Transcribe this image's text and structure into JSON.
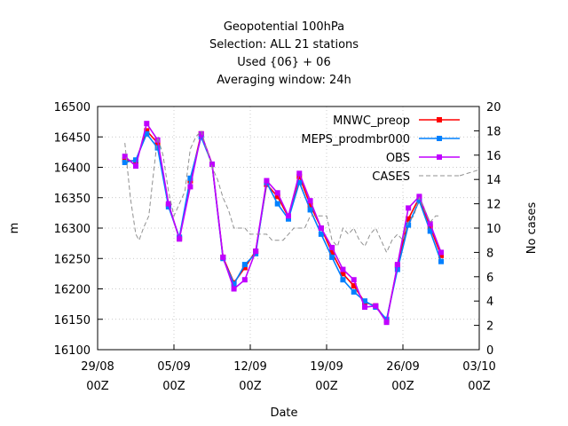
{
  "chart_data": {
    "type": "line",
    "title_lines": [
      "Geopotential 100hPa",
      "Selection: ALL     21 stations",
      "Used {06} + 06",
      "Averaging window: 24h"
    ],
    "xlabel": "Date",
    "ylabel": "m",
    "y2label": "No cases",
    "ylim": [
      16100,
      16500
    ],
    "y2lim": [
      0,
      20
    ],
    "y_ticks": [
      16100,
      16150,
      16200,
      16250,
      16300,
      16350,
      16400,
      16450,
      16500
    ],
    "y2_ticks": [
      0,
      2,
      4,
      6,
      8,
      10,
      12,
      14,
      16,
      18,
      20
    ],
    "x_ticks": [
      {
        "day": 0,
        "line1": "29/08",
        "line2": "00Z"
      },
      {
        "day": 7,
        "line1": "05/09",
        "line2": "00Z"
      },
      {
        "day": 14,
        "line1": "12/09",
        "line2": "00Z"
      },
      {
        "day": 21,
        "line1": "19/09",
        "line2": "00Z"
      },
      {
        "day": 28,
        "line1": "26/09",
        "line2": "00Z"
      },
      {
        "day": 35,
        "line1": "03/10",
        "line2": "00Z"
      }
    ],
    "xlim_days": [
      0,
      35
    ],
    "series": [
      {
        "name": "MNWC_preop",
        "color": "#ff0000",
        "marker": "square",
        "points": [
          [
            2.5,
            16412
          ],
          [
            3.5,
            16410
          ],
          [
            4.5,
            16460
          ],
          [
            5.5,
            16440
          ],
          [
            6.5,
            16338
          ],
          [
            7.5,
            16283
          ],
          [
            8.5,
            16378
          ],
          [
            9.5,
            16455
          ],
          [
            10.5,
            16405
          ],
          [
            11.5,
            16252
          ],
          [
            12.5,
            16210
          ],
          [
            13.5,
            16235
          ],
          [
            14.5,
            16262
          ],
          [
            15.5,
            16372
          ],
          [
            16.5,
            16352
          ],
          [
            17.5,
            16318
          ],
          [
            18.5,
            16385
          ],
          [
            19.5,
            16338
          ],
          [
            20.5,
            16300
          ],
          [
            21.5,
            16260
          ],
          [
            22.5,
            16225
          ],
          [
            23.5,
            16205
          ],
          [
            24.5,
            16178
          ],
          [
            25.5,
            16172
          ],
          [
            26.5,
            16148
          ],
          [
            27.5,
            16238
          ],
          [
            28.5,
            16315
          ],
          [
            29.5,
            16350
          ],
          [
            30.5,
            16302
          ],
          [
            31.5,
            16255
          ]
        ]
      },
      {
        "name": "MEPS_prodmbr000",
        "color": "#0080ff",
        "marker": "square",
        "points": [
          [
            2.5,
            16408
          ],
          [
            3.5,
            16412
          ],
          [
            4.5,
            16455
          ],
          [
            5.5,
            16432
          ],
          [
            6.5,
            16335
          ],
          [
            7.5,
            16285
          ],
          [
            8.5,
            16382
          ],
          [
            9.5,
            16450
          ],
          [
            10.5,
            16405
          ],
          [
            11.5,
            16250
          ],
          [
            12.5,
            16208
          ],
          [
            13.5,
            16240
          ],
          [
            14.5,
            16258
          ],
          [
            15.5,
            16375
          ],
          [
            16.5,
            16340
          ],
          [
            17.5,
            16315
          ],
          [
            18.5,
            16375
          ],
          [
            19.5,
            16330
          ],
          [
            20.5,
            16290
          ],
          [
            21.5,
            16252
          ],
          [
            22.5,
            16215
          ],
          [
            23.5,
            16195
          ],
          [
            24.5,
            16180
          ],
          [
            25.5,
            16170
          ],
          [
            26.5,
            16150
          ],
          [
            27.5,
            16232
          ],
          [
            28.5,
            16305
          ],
          [
            29.5,
            16345
          ],
          [
            30.5,
            16295
          ],
          [
            31.5,
            16245
          ]
        ]
      },
      {
        "name": "OBS",
        "color": "#c000ff",
        "marker": "square",
        "points": [
          [
            2.5,
            16418
          ],
          [
            3.5,
            16402
          ],
          [
            4.5,
            16472
          ],
          [
            5.5,
            16445
          ],
          [
            6.5,
            16340
          ],
          [
            7.5,
            16282
          ],
          [
            8.5,
            16368
          ],
          [
            9.5,
            16455
          ],
          [
            10.5,
            16405
          ],
          [
            11.5,
            16252
          ],
          [
            12.5,
            16200
          ],
          [
            13.5,
            16215
          ],
          [
            14.5,
            16262
          ],
          [
            15.5,
            16378
          ],
          [
            16.5,
            16358
          ],
          [
            17.5,
            16320
          ],
          [
            18.5,
            16390
          ],
          [
            19.5,
            16345
          ],
          [
            20.5,
            16300
          ],
          [
            21.5,
            16268
          ],
          [
            22.5,
            16232
          ],
          [
            23.5,
            16215
          ],
          [
            24.5,
            16170
          ],
          [
            25.5,
            16172
          ],
          [
            26.5,
            16145
          ],
          [
            27.5,
            16240
          ],
          [
            28.5,
            16333
          ],
          [
            29.5,
            16352
          ],
          [
            30.5,
            16307
          ],
          [
            31.5,
            16260
          ]
        ]
      },
      {
        "name": "CASES",
        "color": "#909090",
        "dashed": true,
        "axis": "y2",
        "points": [
          [
            2.5,
            17
          ],
          [
            3,
            12.5
          ],
          [
            3.5,
            9.5
          ],
          [
            3.8,
            9
          ],
          [
            4.2,
            10
          ],
          [
            4.7,
            11
          ],
          [
            5,
            13.5
          ],
          [
            5.5,
            17.5
          ],
          [
            6,
            16
          ],
          [
            6.5,
            13
          ],
          [
            7,
            11
          ],
          [
            7.5,
            12
          ],
          [
            8,
            13
          ],
          [
            8.5,
            16.5
          ],
          [
            9,
            17.5
          ],
          [
            9.5,
            18
          ],
          [
            10,
            16.5
          ],
          [
            10.5,
            15
          ],
          [
            11,
            14
          ],
          [
            11.5,
            12.5
          ],
          [
            12,
            11.5
          ],
          [
            12.5,
            10
          ],
          [
            13,
            10
          ],
          [
            13.5,
            10
          ],
          [
            14,
            9.5
          ],
          [
            14.5,
            9.5
          ],
          [
            15,
            9.5
          ],
          [
            15.5,
            9.5
          ],
          [
            16,
            9
          ],
          [
            16.5,
            9
          ],
          [
            17,
            9
          ],
          [
            17.5,
            9.5
          ],
          [
            18,
            10
          ],
          [
            18.5,
            10
          ],
          [
            19,
            10
          ],
          [
            19.5,
            11
          ],
          [
            20,
            11
          ],
          [
            20.5,
            11
          ],
          [
            21,
            11
          ],
          [
            21.5,
            9
          ],
          [
            22,
            8.5
          ],
          [
            22.5,
            10
          ],
          [
            23,
            9.5
          ],
          [
            23.5,
            10
          ],
          [
            24,
            9
          ],
          [
            24.5,
            8.5
          ],
          [
            25,
            9.5
          ],
          [
            25.5,
            10
          ],
          [
            26,
            9
          ],
          [
            26.5,
            8
          ],
          [
            27,
            9
          ],
          [
            27.5,
            9.5
          ],
          [
            28,
            9
          ],
          [
            28.5,
            10.5
          ],
          [
            29,
            11
          ],
          [
            29.5,
            12.5
          ],
          [
            30,
            11.5
          ],
          [
            30.5,
            10.5
          ],
          [
            31,
            11
          ],
          [
            31.5,
            11
          ]
        ]
      }
    ],
    "legend_position": "top-right",
    "legend_cases_extension_y2": 14.8,
    "grid": true
  }
}
